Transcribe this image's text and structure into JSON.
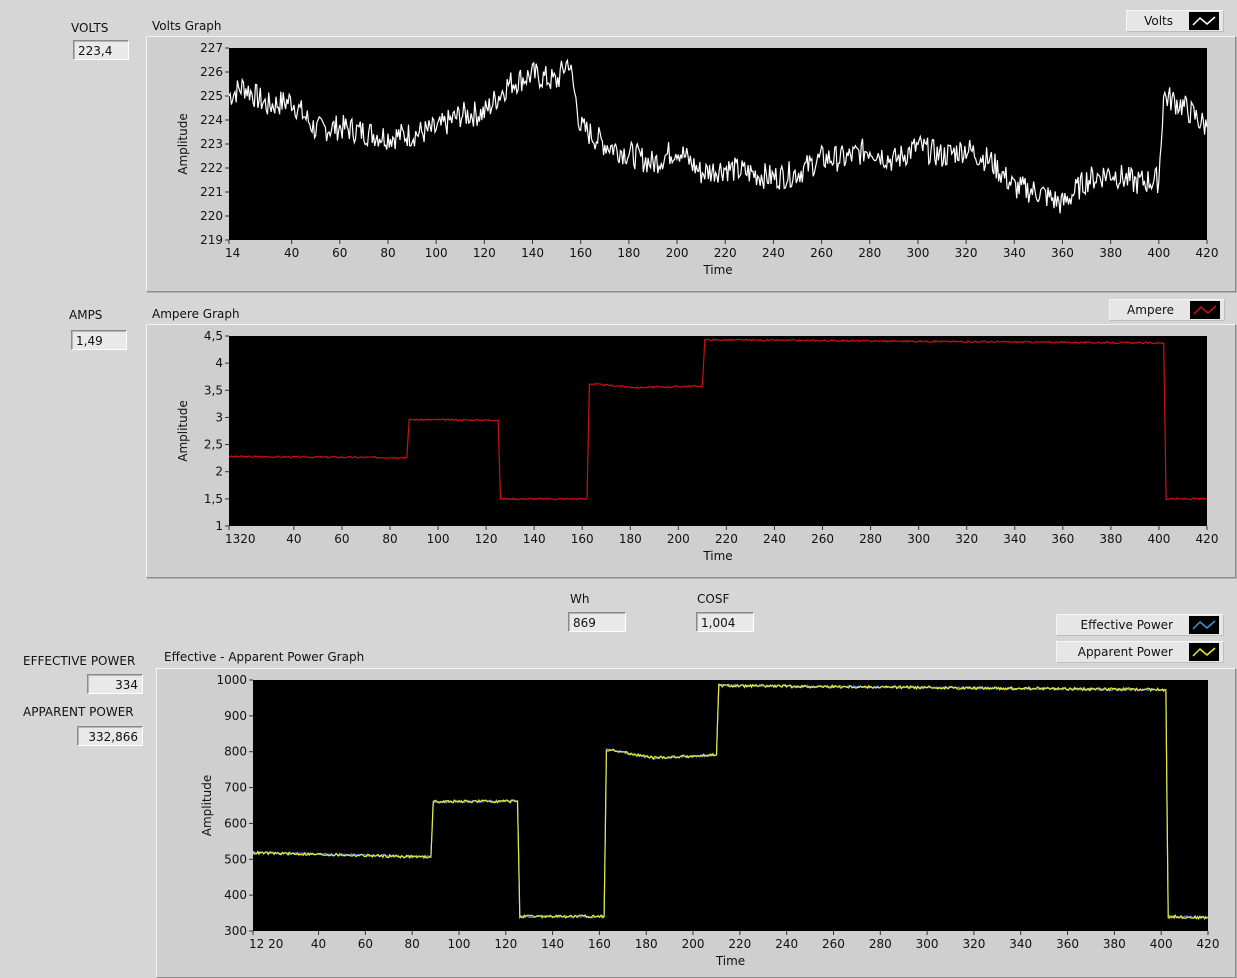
{
  "volts": {
    "label": "VOLTS",
    "value": "223,4",
    "graph_title": "Volts Graph",
    "legend": "Volts",
    "legend_color": "#ffffff"
  },
  "amps": {
    "label": "AMPS",
    "value": "1,49",
    "graph_title": "Ampere Graph",
    "legend": "Ampere",
    "legend_color": "#cc1111"
  },
  "wh": {
    "label": "Wh",
    "value": "869"
  },
  "cosf": {
    "label": "COSF",
    "value": "1,004"
  },
  "effective_power": {
    "label": "EFFECTIVE POWER",
    "value": "334"
  },
  "apparent_power": {
    "label": "APPARENT POWER",
    "value": "332,866"
  },
  "power_graph": {
    "title": "Effective - Apparent Power Graph",
    "legend_effective": "Effective Power",
    "legend_apparent": "Apparent Power",
    "effective_color": "#4a90e2",
    "apparent_color": "#e8e83a"
  },
  "chart_data": [
    {
      "type": "line",
      "title": "Volts Graph",
      "xlabel": "Time",
      "ylabel": "Amplitude",
      "xlim": [
        14,
        420
      ],
      "ylim": [
        219,
        227
      ],
      "x_ticks": [
        "14",
        "40",
        "60",
        "80",
        "100",
        "120",
        "140",
        "160",
        "180",
        "200",
        "220",
        "240",
        "260",
        "280",
        "300",
        "320",
        "340",
        "360",
        "380",
        "400",
        "420"
      ],
      "y_ticks": [
        "219",
        "220",
        "221",
        "222",
        "223",
        "224",
        "225",
        "226",
        "227"
      ],
      "series": [
        {
          "name": "Volts",
          "x": [
            14,
            20,
            30,
            40,
            50,
            60,
            70,
            80,
            90,
            100,
            110,
            120,
            130,
            140,
            150,
            155,
            160,
            170,
            180,
            190,
            200,
            210,
            220,
            230,
            240,
            250,
            260,
            270,
            280,
            290,
            300,
            310,
            320,
            330,
            340,
            350,
            360,
            370,
            380,
            390,
            400,
            402,
            410,
            420
          ],
          "y": [
            225.0,
            225.4,
            224.6,
            224.8,
            223.6,
            223.7,
            223.5,
            223.3,
            223.4,
            223.6,
            224.2,
            224.3,
            225.5,
            225.9,
            225.6,
            226.5,
            223.7,
            223.0,
            222.6,
            222.2,
            222.8,
            221.8,
            222.0,
            221.8,
            221.6,
            221.8,
            222.4,
            222.4,
            222.8,
            222.3,
            222.9,
            222.5,
            222.8,
            222.3,
            221.2,
            221.0,
            220.5,
            221.5,
            221.8,
            221.4,
            221.5,
            225.0,
            224.6,
            223.7
          ]
        }
      ]
    },
    {
      "type": "line",
      "title": "Ampere Graph",
      "xlabel": "Time",
      "ylabel": "Amplitude",
      "xlim": [
        13,
        420
      ],
      "ylim": [
        1,
        4.5
      ],
      "x_ticks": [
        "1320",
        "40",
        "60",
        "80",
        "100",
        "120",
        "140",
        "160",
        "180",
        "200",
        "220",
        "240",
        "260",
        "280",
        "300",
        "320",
        "340",
        "360",
        "380",
        "400",
        "420"
      ],
      "y_ticks": [
        "1",
        "1,5",
        "2",
        "2,5",
        "3",
        "3,5",
        "4",
        "4,5"
      ],
      "series": [
        {
          "name": "Ampere",
          "x": [
            13,
            87,
            88,
            125,
            126,
            162,
            163,
            183,
            210,
            211,
            402,
            403,
            420
          ],
          "y": [
            2.28,
            2.26,
            2.96,
            2.95,
            1.5,
            1.5,
            3.62,
            3.55,
            3.58,
            4.43,
            4.37,
            1.5,
            1.5
          ]
        }
      ]
    },
    {
      "type": "line",
      "title": "Effective - Apparent Power Graph",
      "xlabel": "Time",
      "ylabel": "Amplitude",
      "xlim": [
        12,
        420
      ],
      "ylim": [
        300,
        1000
      ],
      "x_ticks": [
        "12 20",
        "40",
        "60",
        "80",
        "100",
        "120",
        "140",
        "160",
        "180",
        "200",
        "220",
        "240",
        "260",
        "280",
        "300",
        "320",
        "340",
        "360",
        "380",
        "400",
        "420"
      ],
      "y_ticks": [
        "300",
        "400",
        "500",
        "600",
        "700",
        "800",
        "900",
        "1000"
      ],
      "series": [
        {
          "name": "Effective Power",
          "x": [
            12,
            88,
            89,
            125,
            126,
            162,
            163,
            183,
            210,
            211,
            402,
            403,
            420
          ],
          "y": [
            519,
            507,
            660,
            663,
            341,
            340,
            808,
            782,
            790,
            985,
            972,
            341,
            338
          ]
        },
        {
          "name": "Apparent Power",
          "x": [
            12,
            88,
            89,
            125,
            126,
            162,
            163,
            183,
            210,
            211,
            402,
            403,
            420
          ],
          "y": [
            518,
            506,
            661,
            662,
            340,
            341,
            807,
            783,
            791,
            984,
            973,
            340,
            337
          ]
        }
      ]
    }
  ]
}
